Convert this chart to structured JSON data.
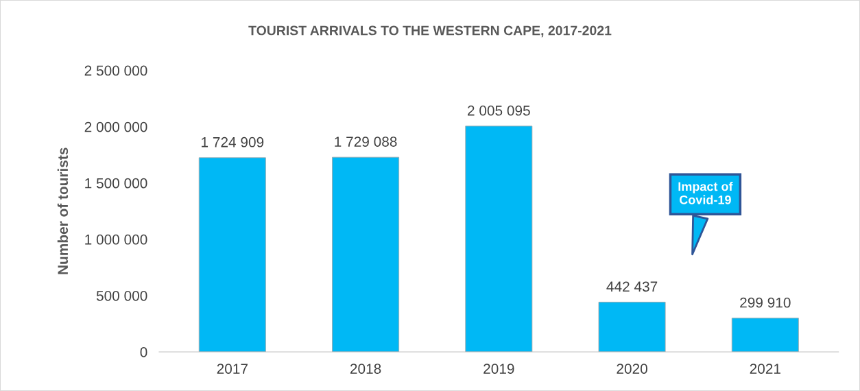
{
  "chart_data": {
    "type": "bar",
    "title": "TOURIST ARRIVALS TO THE WESTERN CAPE, 2017-2021",
    "ylabel": "Number of tourists",
    "categories": [
      "2017",
      "2018",
      "2019",
      "2020",
      "2021"
    ],
    "values": [
      1724909,
      1729088,
      2005095,
      442437,
      299910
    ],
    "value_labels": [
      "1 724 909",
      "1 729 088",
      "2 005 095",
      "442 437",
      "299 910"
    ],
    "color": "#00b8f5",
    "ylim": [
      0,
      2500000
    ],
    "yticks": [
      0,
      {
        "value": 500000,
        "label": "500 000"
      },
      {
        "value": 1000000,
        "label": "1 000 000"
      },
      {
        "value": 1500000,
        "label": "1 500 000"
      },
      {
        "value": 2000000,
        "label": "2 000 000"
      },
      {
        "value": 2500000,
        "label": "2 500 000"
      }
    ],
    "annotations": [
      "Impact of\nCovid-19"
    ],
    "grid": false,
    "legend": false
  }
}
